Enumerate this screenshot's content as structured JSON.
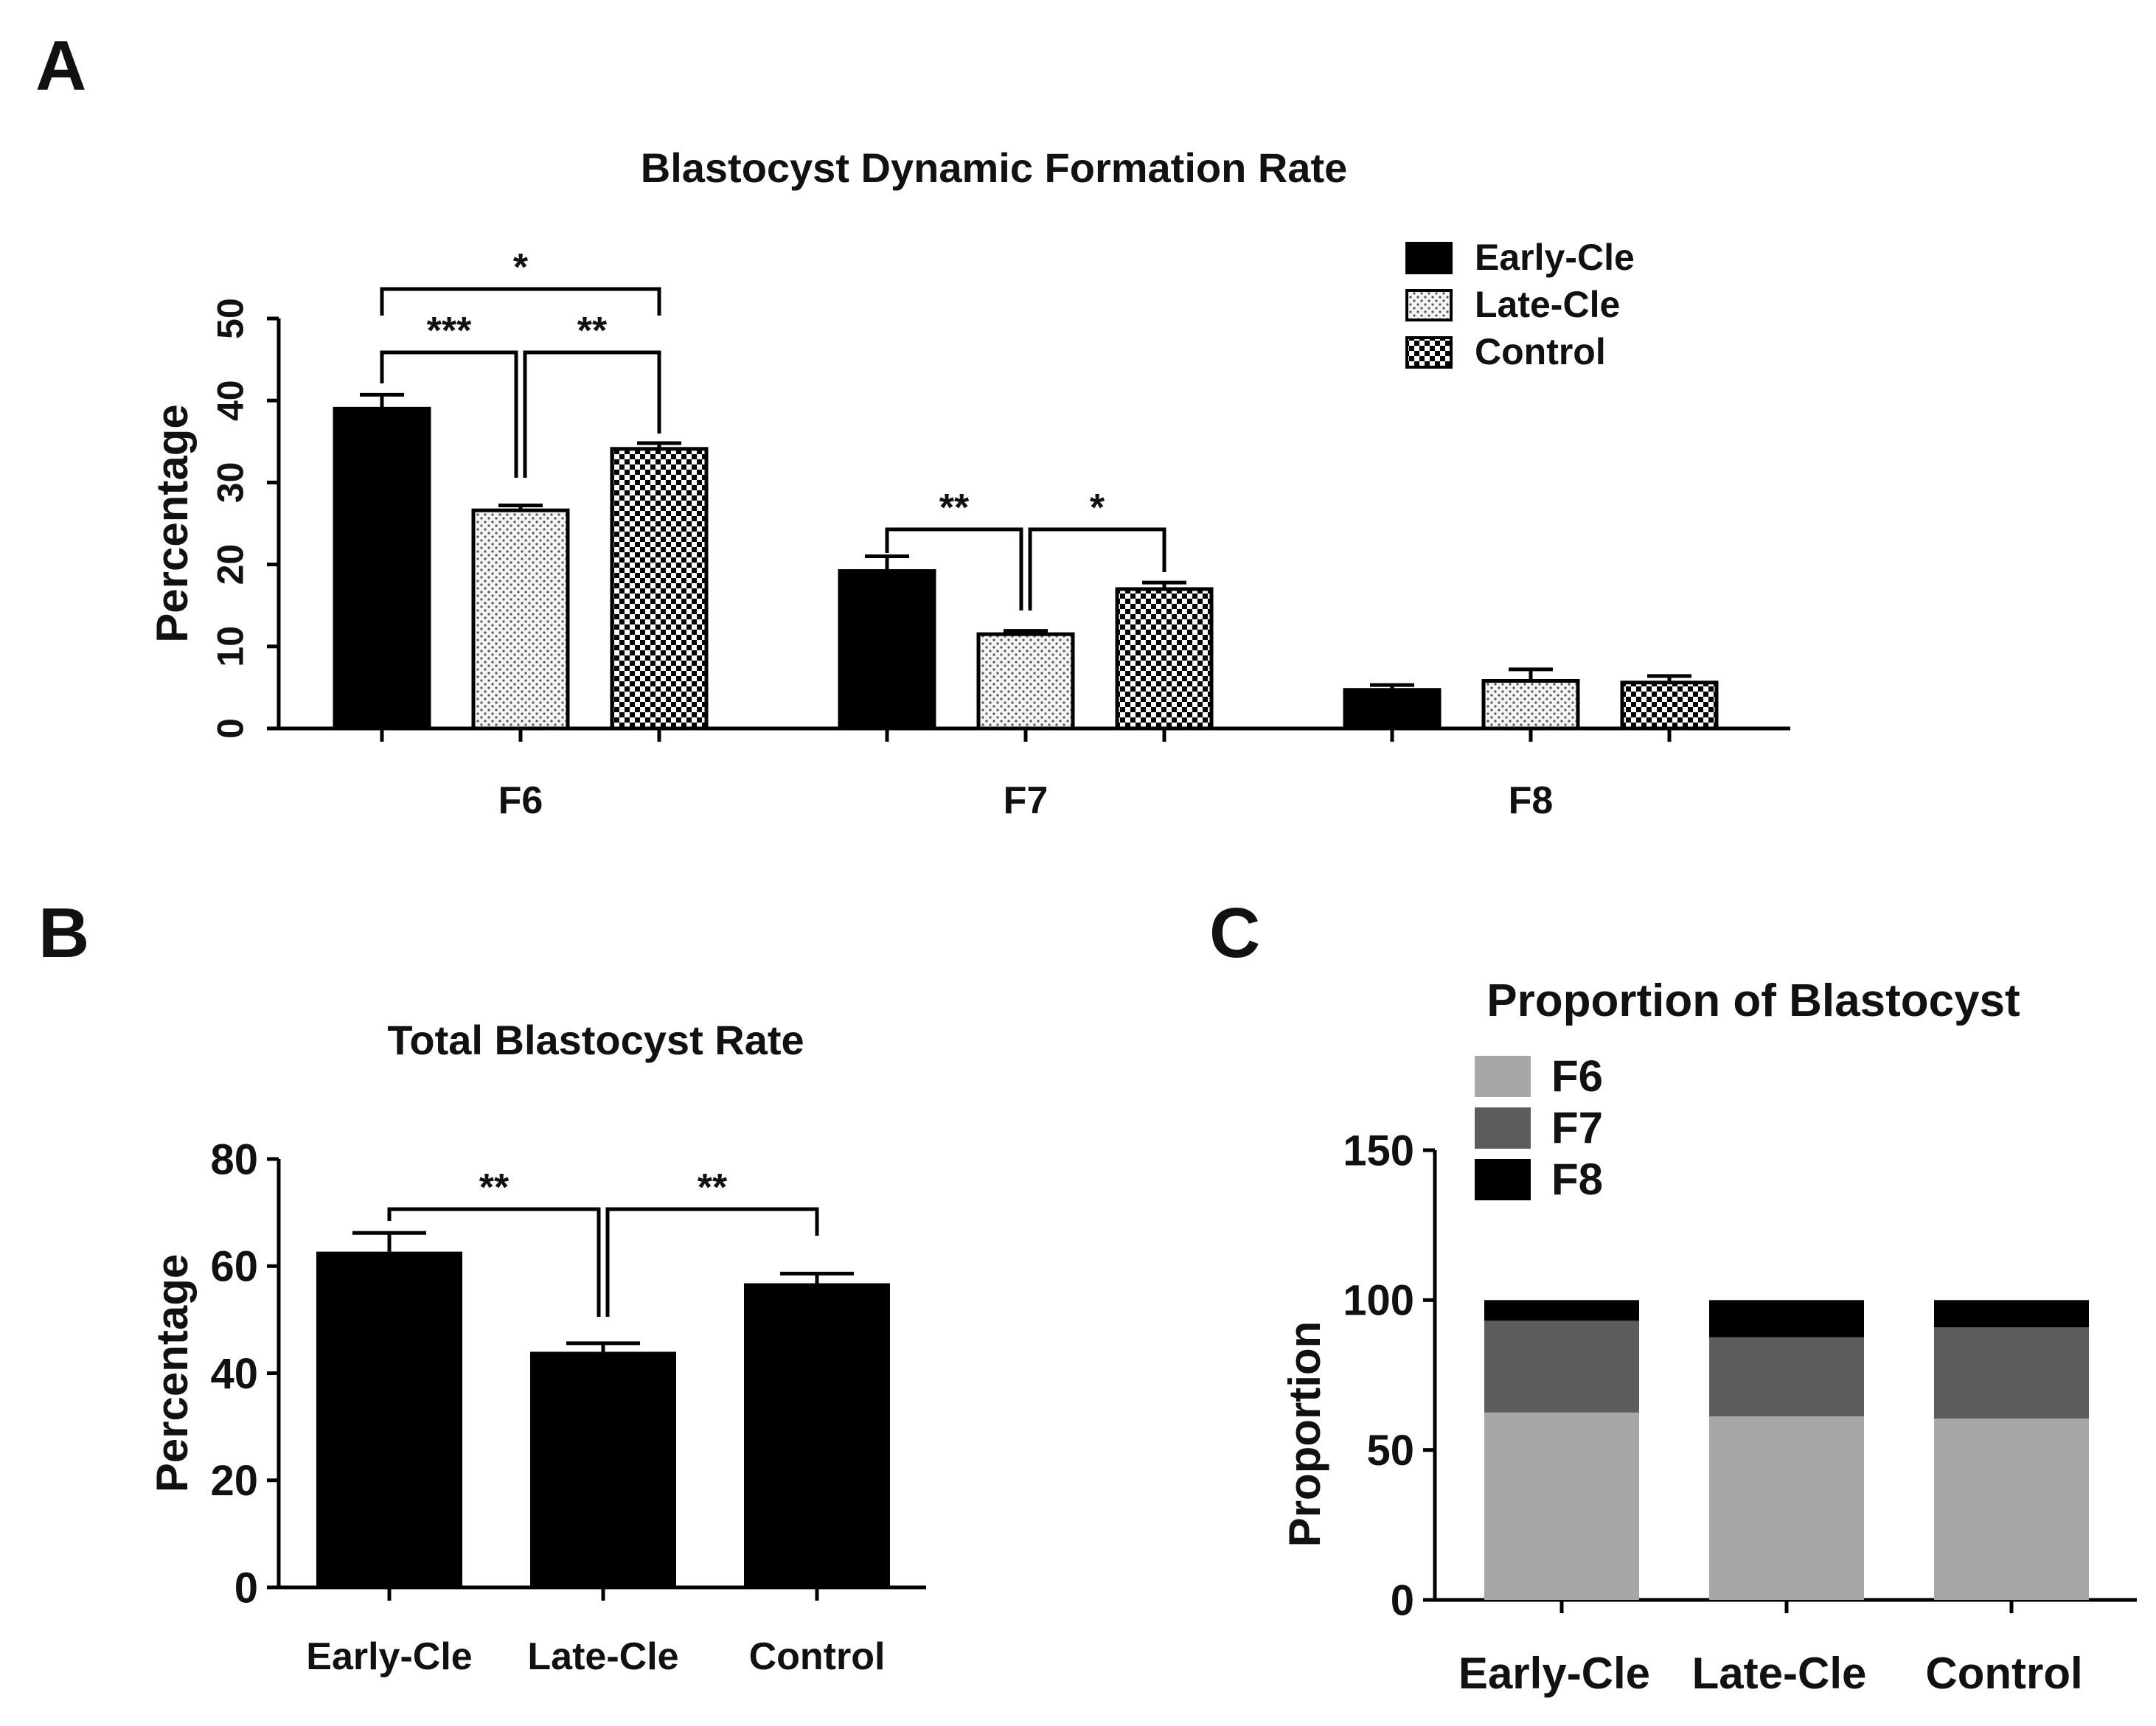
{
  "panels": {
    "A": "A",
    "B": "B",
    "C": "C"
  },
  "colors": {
    "early": "#000000",
    "late_fill": "#f4f4f4",
    "late_dot": "#555555",
    "control_a": "#000000",
    "control_b": "#ffffff",
    "f6": "#a7a7a9",
    "f7": "#5d5d5d",
    "f8": "#000000"
  },
  "chart_data": [
    {
      "id": "A",
      "type": "bar",
      "title": "Blastocyst Dynamic Formation Rate",
      "xlabel": "",
      "ylabel": "Percentage",
      "ylim": [
        0,
        50
      ],
      "yticks": [
        "0",
        "10",
        "20",
        "30",
        "40",
        "50"
      ],
      "categories": [
        "F6",
        "F7",
        "F8"
      ],
      "series": [
        {
          "name": "Early-Cle",
          "values": [
            39,
            19.2,
            4.7
          ],
          "errors": [
            1.7,
            1.8,
            0.6
          ]
        },
        {
          "name": "Late-Cle",
          "values": [
            26.6,
            11.5,
            5.8
          ],
          "errors": [
            0.6,
            0.4,
            1.4
          ]
        },
        {
          "name": "Control",
          "values": [
            34.1,
            17.0,
            5.6
          ],
          "errors": [
            0.7,
            0.8,
            0.8
          ]
        }
      ],
      "legend_position": "top-right",
      "significance": [
        {
          "label": "*",
          "category": 0,
          "from": 0,
          "to": 2
        },
        {
          "label": "***",
          "category": 0,
          "from": 0,
          "to": 1
        },
        {
          "label": "**",
          "category": 0,
          "from": 1,
          "to": 2
        },
        {
          "label": "**",
          "category": 1,
          "from": 0,
          "to": 1
        },
        {
          "label": "*",
          "category": 1,
          "from": 1,
          "to": 2
        }
      ]
    },
    {
      "id": "B",
      "type": "bar",
      "title": "Total Blastocyst Rate",
      "xlabel": "",
      "ylabel": "Percentage",
      "ylim": [
        0,
        80
      ],
      "yticks": [
        "0",
        "20",
        "40",
        "60",
        "80"
      ],
      "categories": [
        "Early-Cle",
        "Late-Cle",
        "Control"
      ],
      "values": [
        62.7,
        44.0,
        56.8
      ],
      "errors": [
        3.5,
        1.6,
        1.8
      ],
      "significance": [
        {
          "label": "**",
          "from": 0,
          "to": 1
        },
        {
          "label": "**",
          "from": 1,
          "to": 2
        }
      ]
    },
    {
      "id": "C",
      "type": "bar",
      "stacked": true,
      "title": "Proportion of Blastocyst",
      "xlabel": "",
      "ylabel": "Proportion",
      "ylim": [
        0,
        150
      ],
      "yticks": [
        "0",
        "50",
        "100",
        "150"
      ],
      "categories": [
        "Early-Cle",
        "Late-Cle",
        "Control"
      ],
      "series": [
        {
          "name": "F6",
          "values": [
            62.5,
            61.2,
            60.5
          ]
        },
        {
          "name": "F7",
          "values": [
            30.6,
            26.4,
            30.4
          ]
        },
        {
          "name": "F8",
          "values": [
            6.9,
            12.4,
            9.1
          ]
        }
      ],
      "legend_position": "top-left"
    }
  ]
}
